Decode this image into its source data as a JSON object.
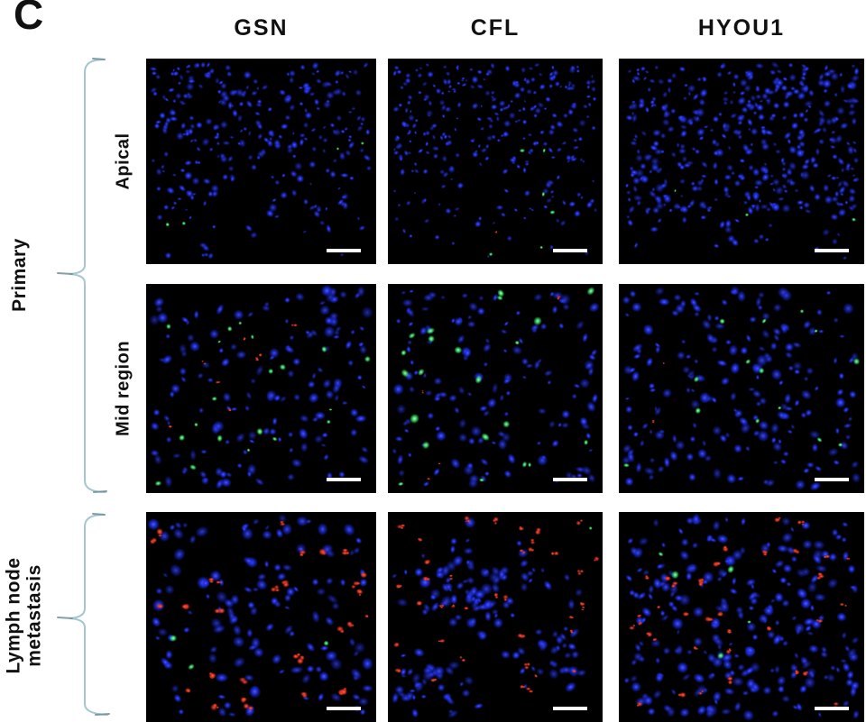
{
  "figure": {
    "label": "C"
  },
  "columns": [
    {
      "label": "GSN"
    },
    {
      "label": "CFL"
    },
    {
      "label": "HYOU1"
    }
  ],
  "groups": [
    {
      "label": "Primary"
    },
    {
      "label": "Lymph node metastasis",
      "label_line1": "Lymph node",
      "label_line2": "metastasis"
    }
  ],
  "rows": [
    {
      "label": "Apical",
      "group": "Primary"
    },
    {
      "label": "Mid region",
      "group": "Primary"
    },
    {
      "label": "Lymph node metastasis",
      "group": "Lymph node metastasis"
    }
  ],
  "colors": {
    "page_background": "#ffffff",
    "micrograph_background": "#000000",
    "text": "#111111",
    "bracket": "#a6c6cf",
    "bracket_tip": "#6d8f99",
    "nuclei_blue": "#1c2be4",
    "marker_green": "#2fe060",
    "marker_red": "#e62e1b",
    "scale_bar": "#ffffff"
  },
  "panels": [
    {
      "column": "GSN",
      "row": "Apical",
      "group": "Primary",
      "scale_bar": true,
      "render": {
        "seed": 11,
        "nuclei": {
          "count": 290,
          "size": 3.4,
          "pattern": "top"
        },
        "green": {
          "count": 4,
          "size": 2.4,
          "pattern": "scatter"
        },
        "red": {
          "count": 0,
          "size": 0,
          "pattern": "scatter"
        }
      }
    },
    {
      "column": "CFL",
      "row": "Apical",
      "group": "Primary",
      "scale_bar": true,
      "render": {
        "seed": 22,
        "nuclei": {
          "count": 300,
          "size": 3.0,
          "pattern": "top"
        },
        "green": {
          "count": 6,
          "size": 2.8,
          "pattern": "lower-right"
        },
        "red": {
          "count": 1,
          "size": 1.6,
          "pattern": "scatter"
        }
      }
    },
    {
      "column": "HYOU1",
      "row": "Apical",
      "group": "Primary",
      "scale_bar": true,
      "render": {
        "seed": 33,
        "nuclei": {
          "count": 440,
          "size": 3.6,
          "pattern": "top-wide"
        },
        "green": {
          "count": 3,
          "size": 2.6,
          "pattern": "bottom"
        },
        "red": {
          "count": 0,
          "size": 0,
          "pattern": "scatter"
        }
      }
    },
    {
      "column": "GSN",
      "row": "Mid region",
      "group": "Primary",
      "scale_bar": true,
      "render": {
        "seed": 44,
        "nuclei": {
          "count": 150,
          "size": 4.6,
          "pattern": "uniform"
        },
        "green": {
          "count": 20,
          "size": 3.2,
          "pattern": "scatter"
        },
        "red": {
          "count": 8,
          "size": 2.2,
          "pattern": "mid-left"
        }
      }
    },
    {
      "column": "CFL",
      "row": "Mid region",
      "group": "Primary",
      "scale_bar": true,
      "render": {
        "seed": 55,
        "nuclei": {
          "count": 150,
          "size": 4.4,
          "pattern": "uniform"
        },
        "green": {
          "count": 22,
          "size": 4.2,
          "pattern": "scatter"
        },
        "red": {
          "count": 4,
          "size": 1.8,
          "pattern": "scatter"
        }
      }
    },
    {
      "column": "HYOU1",
      "row": "Mid region",
      "group": "Primary",
      "scale_bar": true,
      "render": {
        "seed": 66,
        "nuclei": {
          "count": 200,
          "size": 4.6,
          "pattern": "uniform"
        },
        "green": {
          "count": 14,
          "size": 3.0,
          "pattern": "center-right"
        },
        "red": {
          "count": 2,
          "size": 1.4,
          "pattern": "scatter"
        }
      }
    },
    {
      "column": "GSN",
      "row": "Lymph node metastasis",
      "group": "Lymph node metastasis",
      "scale_bar": true,
      "render": {
        "seed": 77,
        "nuclei": {
          "count": 135,
          "size": 5.2,
          "pattern": "uniform"
        },
        "green": {
          "count": 3,
          "size": 3.4,
          "pattern": "left"
        },
        "red": {
          "count": 30,
          "size": 3.4,
          "pattern": "scatter"
        }
      }
    },
    {
      "column": "CFL",
      "row": "Lymph node metastasis",
      "group": "Lymph node metastasis",
      "scale_bar": true,
      "render": {
        "seed": 88,
        "nuclei": {
          "count": 160,
          "size": 4.8,
          "pattern": "clusters"
        },
        "green": {
          "count": 1,
          "size": 2.2,
          "pattern": "scatter"
        },
        "red": {
          "count": 38,
          "size": 2.8,
          "pattern": "scatter"
        }
      }
    },
    {
      "column": "HYOU1",
      "row": "Lymph node metastasis",
      "group": "Lymph node metastasis",
      "scale_bar": true,
      "render": {
        "seed": 99,
        "nuclei": {
          "count": 250,
          "size": 4.8,
          "pattern": "uniform"
        },
        "green": {
          "count": 5,
          "size": 3.6,
          "pattern": "mid-left"
        },
        "red": {
          "count": 36,
          "size": 3.0,
          "pattern": "scatter"
        }
      }
    }
  ]
}
